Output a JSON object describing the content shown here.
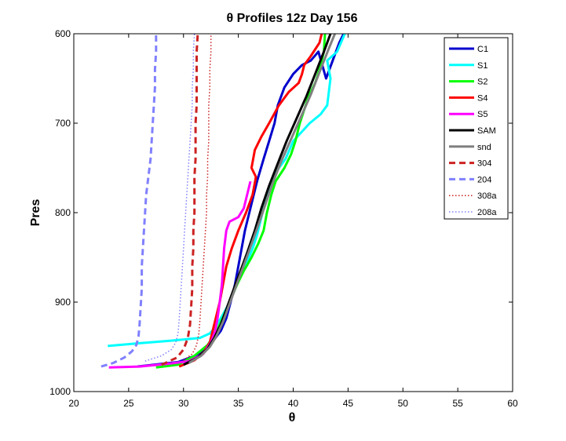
{
  "chart_data": {
    "type": "line",
    "title": "θ Profiles 12z Day 156",
    "xlabel": "θ",
    "ylabel": "Pres",
    "xlim": [
      20,
      60
    ],
    "ylim_reversed": [
      600,
      1000
    ],
    "xticks": [
      "20",
      "25",
      "30",
      "35",
      "40",
      "45",
      "50",
      "55",
      "60"
    ],
    "yticks": [
      "600",
      "700",
      "800",
      "900",
      "1000"
    ],
    "grid": false,
    "legend_position": "top-right",
    "series": [
      {
        "name": "C1",
        "color": "#0000cc",
        "style": "solid",
        "points": [
          [
            25.8,
            972
          ],
          [
            29.5,
            967
          ],
          [
            31.5,
            958
          ],
          [
            32.6,
            945
          ],
          [
            33.4,
            932
          ],
          [
            33.9,
            918
          ],
          [
            34.3,
            900
          ],
          [
            34.7,
            880
          ],
          [
            35.0,
            860
          ],
          [
            35.3,
            840
          ],
          [
            35.6,
            820
          ],
          [
            35.9,
            805
          ],
          [
            36.2,
            790
          ],
          [
            36.7,
            765
          ],
          [
            37.3,
            740
          ],
          [
            37.8,
            720
          ],
          [
            38.3,
            700
          ],
          [
            38.6,
            680
          ],
          [
            39.2,
            660
          ],
          [
            40.0,
            645
          ],
          [
            40.8,
            635
          ],
          [
            41.6,
            630
          ],
          [
            42.3,
            620
          ],
          [
            43.0,
            650
          ],
          [
            43.6,
            630
          ],
          [
            44.2,
            610
          ],
          [
            44.6,
            600
          ]
        ]
      },
      {
        "name": "S1",
        "color": "#00ffff",
        "style": "solid",
        "points": [
          [
            23.1,
            949
          ],
          [
            26.0,
            946
          ],
          [
            29.0,
            943
          ],
          [
            31.5,
            940
          ],
          [
            32.4,
            935
          ],
          [
            32.9,
            928
          ],
          [
            33.4,
            918
          ],
          [
            34.0,
            905
          ],
          [
            34.6,
            888
          ],
          [
            35.1,
            872
          ],
          [
            35.8,
            855
          ],
          [
            36.3,
            840
          ],
          [
            36.7,
            825
          ],
          [
            37.0,
            810
          ],
          [
            37.3,
            795
          ],
          [
            37.8,
            775
          ],
          [
            38.4,
            755
          ],
          [
            39.3,
            740
          ],
          [
            40.0,
            720
          ],
          [
            41.5,
            700
          ],
          [
            42.5,
            690
          ],
          [
            43.1,
            680
          ],
          [
            43.4,
            650
          ],
          [
            43.1,
            630
          ],
          [
            44.0,
            620
          ],
          [
            44.7,
            600
          ]
        ]
      },
      {
        "name": "S2",
        "color": "#00ff00",
        "style": "solid",
        "points": [
          [
            27.5,
            973
          ],
          [
            29.5,
            970
          ],
          [
            31.0,
            960
          ],
          [
            32.2,
            948
          ],
          [
            32.9,
            935
          ],
          [
            33.5,
            920
          ],
          [
            34.2,
            900
          ],
          [
            34.9,
            880
          ],
          [
            35.5,
            865
          ],
          [
            36.2,
            850
          ],
          [
            36.8,
            835
          ],
          [
            37.3,
            820
          ],
          [
            37.6,
            800
          ],
          [
            38.0,
            780
          ],
          [
            38.4,
            765
          ],
          [
            39.2,
            750
          ],
          [
            39.8,
            735
          ],
          [
            40.2,
            720
          ],
          [
            40.6,
            700
          ],
          [
            41.0,
            685
          ],
          [
            41.4,
            670
          ],
          [
            42.0,
            655
          ],
          [
            42.4,
            640
          ],
          [
            42.8,
            620
          ],
          [
            42.9,
            600
          ]
        ]
      },
      {
        "name": "S4",
        "color": "#ff0000",
        "style": "solid",
        "points": [
          [
            29.6,
            972
          ],
          [
            31.0,
            965
          ],
          [
            31.9,
            955
          ],
          [
            32.4,
            945
          ],
          [
            32.7,
            930
          ],
          [
            33.0,
            915
          ],
          [
            33.3,
            900
          ],
          [
            33.6,
            880
          ],
          [
            33.9,
            860
          ],
          [
            34.4,
            840
          ],
          [
            35.0,
            820
          ],
          [
            35.7,
            800
          ],
          [
            36.0,
            790
          ],
          [
            36.3,
            780
          ],
          [
            36.6,
            760
          ],
          [
            36.2,
            750
          ],
          [
            36.5,
            730
          ],
          [
            37.1,
            715
          ],
          [
            37.8,
            700
          ],
          [
            38.7,
            680
          ],
          [
            39.6,
            665
          ],
          [
            40.5,
            655
          ],
          [
            40.8,
            645
          ],
          [
            41.0,
            635
          ],
          [
            41.6,
            625
          ],
          [
            42.4,
            610
          ],
          [
            42.6,
            600
          ]
        ]
      },
      {
        "name": "S5",
        "color": "#ff00ff",
        "style": "solid",
        "points": [
          [
            23.2,
            973
          ],
          [
            26.0,
            972
          ],
          [
            28.5,
            969
          ],
          [
            30.5,
            966
          ],
          [
            31.8,
            958
          ],
          [
            32.5,
            945
          ],
          [
            32.9,
            932
          ],
          [
            33.1,
            918
          ],
          [
            33.3,
            900
          ],
          [
            33.5,
            880
          ],
          [
            33.6,
            860
          ],
          [
            33.7,
            840
          ],
          [
            33.9,
            820
          ],
          [
            34.2,
            810
          ],
          [
            35.0,
            805
          ],
          [
            35.5,
            795
          ],
          [
            35.8,
            780
          ],
          [
            36.1,
            765
          ]
        ]
      },
      {
        "name": "SAM",
        "color": "#000000",
        "style": "solid",
        "points": [
          [
            30.0,
            970
          ],
          [
            31.3,
            962
          ],
          [
            32.2,
            952
          ],
          [
            32.8,
            940
          ],
          [
            33.4,
            925
          ],
          [
            34.0,
            905
          ],
          [
            34.6,
            885
          ],
          [
            35.2,
            865
          ],
          [
            35.8,
            845
          ],
          [
            36.5,
            820
          ],
          [
            37.1,
            795
          ],
          [
            37.8,
            770
          ],
          [
            38.6,
            745
          ],
          [
            39.4,
            720
          ],
          [
            40.3,
            695
          ],
          [
            41.2,
            670
          ],
          [
            42.0,
            645
          ],
          [
            42.8,
            620
          ],
          [
            43.4,
            600
          ]
        ]
      },
      {
        "name": "snd",
        "color": "#808080",
        "style": "solid",
        "points": [
          [
            30.5,
            968
          ],
          [
            31.6,
            960
          ],
          [
            32.4,
            950
          ],
          [
            33.0,
            938
          ],
          [
            33.6,
            922
          ],
          [
            34.2,
            902
          ],
          [
            34.8,
            882
          ],
          [
            35.4,
            862
          ],
          [
            36.0,
            842
          ],
          [
            36.7,
            818
          ],
          [
            37.4,
            793
          ],
          [
            38.1,
            768
          ],
          [
            38.9,
            743
          ],
          [
            39.8,
            718
          ],
          [
            40.7,
            693
          ],
          [
            41.6,
            668
          ],
          [
            42.4,
            643
          ],
          [
            43.2,
            618
          ],
          [
            43.8,
            600
          ]
        ]
      },
      {
        "name": "304",
        "color": "#cc2222",
        "style": "dashed",
        "points": [
          [
            28.0,
            970
          ],
          [
            29.4,
            962
          ],
          [
            30.0,
            953
          ],
          [
            30.4,
            940
          ],
          [
            30.6,
            925
          ],
          [
            30.7,
            905
          ],
          [
            30.8,
            885
          ],
          [
            30.8,
            860
          ],
          [
            30.9,
            840
          ],
          [
            30.9,
            820
          ],
          [
            31.0,
            800
          ],
          [
            31.0,
            780
          ],
          [
            31.0,
            760
          ],
          [
            31.1,
            740
          ],
          [
            31.1,
            720
          ],
          [
            31.1,
            700
          ],
          [
            31.2,
            680
          ],
          [
            31.2,
            660
          ],
          [
            31.2,
            640
          ],
          [
            31.2,
            620
          ],
          [
            31.3,
            600
          ]
        ]
      },
      {
        "name": "204",
        "color": "#8080ff",
        "style": "dashed",
        "points": [
          [
            22.5,
            972
          ],
          [
            23.6,
            968
          ],
          [
            24.6,
            962
          ],
          [
            25.3,
            955
          ],
          [
            25.7,
            948
          ],
          [
            25.9,
            938
          ],
          [
            26.0,
            925
          ],
          [
            26.1,
            905
          ],
          [
            26.2,
            885
          ],
          [
            26.2,
            860
          ],
          [
            26.3,
            840
          ],
          [
            26.4,
            820
          ],
          [
            26.5,
            800
          ],
          [
            26.6,
            780
          ],
          [
            26.8,
            760
          ],
          [
            27.0,
            740
          ],
          [
            27.1,
            720
          ],
          [
            27.2,
            700
          ],
          [
            27.3,
            680
          ],
          [
            27.4,
            660
          ],
          [
            27.4,
            640
          ],
          [
            27.5,
            620
          ],
          [
            27.5,
            600
          ]
        ]
      },
      {
        "name": "308a",
        "color": "#cc2222",
        "style": "dotted",
        "points": [
          [
            30.0,
            965
          ],
          [
            30.8,
            958
          ],
          [
            31.2,
            948
          ],
          [
            31.4,
            935
          ],
          [
            31.5,
            920
          ],
          [
            31.6,
            900
          ],
          [
            31.7,
            880
          ],
          [
            31.8,
            860
          ],
          [
            31.9,
            840
          ],
          [
            32.0,
            820
          ],
          [
            32.1,
            800
          ],
          [
            32.1,
            780
          ],
          [
            32.2,
            760
          ],
          [
            32.2,
            740
          ],
          [
            32.3,
            720
          ],
          [
            32.3,
            700
          ],
          [
            32.3,
            680
          ],
          [
            32.4,
            660
          ],
          [
            32.4,
            640
          ],
          [
            32.5,
            620
          ],
          [
            32.5,
            600
          ]
        ]
      },
      {
        "name": "208a",
        "color": "#8080ff",
        "style": "dotted",
        "points": [
          [
            26.5,
            966
          ],
          [
            28.0,
            960
          ],
          [
            28.9,
            953
          ],
          [
            29.3,
            945
          ],
          [
            29.5,
            935
          ],
          [
            29.6,
            920
          ],
          [
            29.7,
            900
          ],
          [
            29.8,
            880
          ],
          [
            29.9,
            860
          ],
          [
            30.0,
            840
          ],
          [
            30.1,
            820
          ],
          [
            30.2,
            800
          ],
          [
            30.3,
            780
          ],
          [
            30.4,
            760
          ],
          [
            30.5,
            740
          ],
          [
            30.6,
            720
          ],
          [
            30.7,
            700
          ],
          [
            30.8,
            680
          ],
          [
            30.8,
            660
          ],
          [
            30.9,
            640
          ],
          [
            30.9,
            620
          ],
          [
            31.0,
            600
          ]
        ]
      }
    ]
  }
}
